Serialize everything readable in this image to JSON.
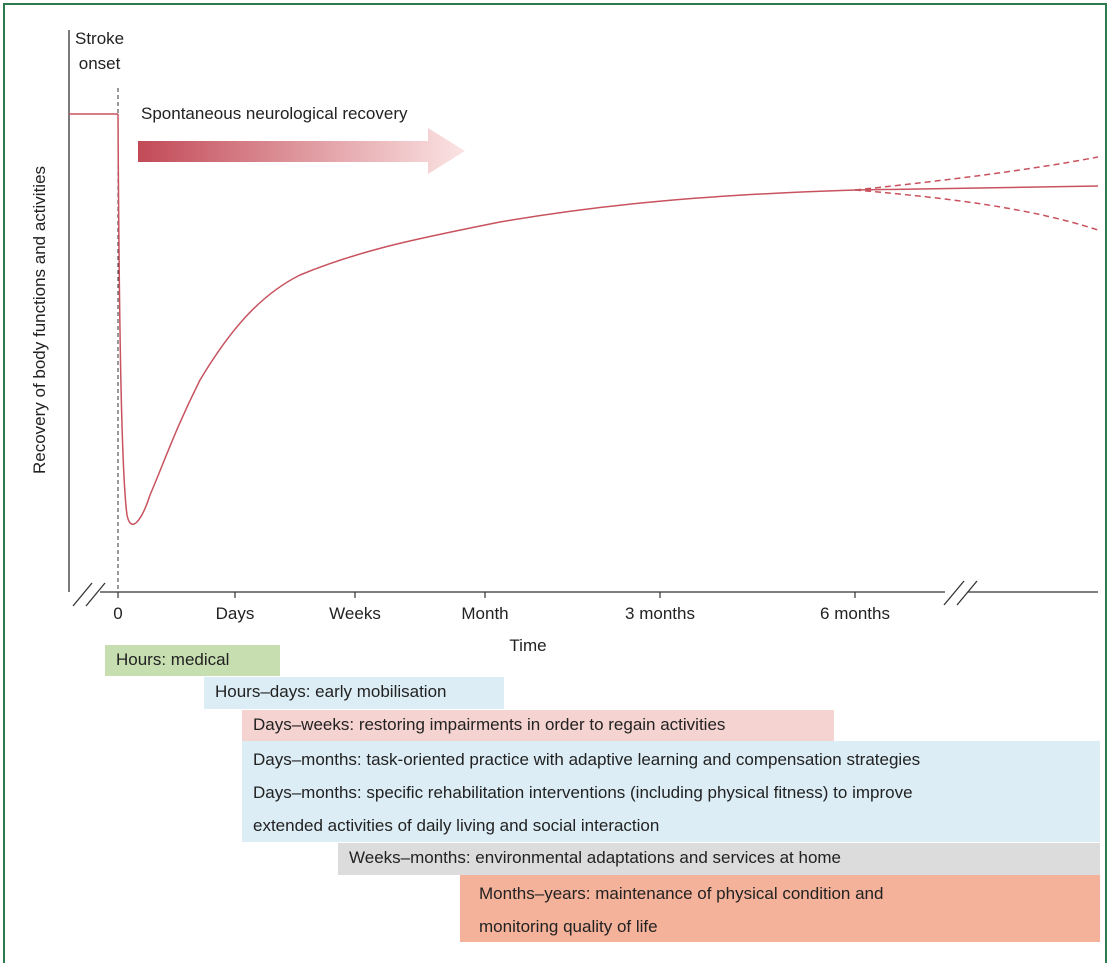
{
  "stroke_onset": [
    "Stroke",
    "onset"
  ],
  "recovery_arrow_label": "Spontaneous neurological recovery",
  "y_axis_label": "Recovery of body functions and activities",
  "x_axis_label": "Time",
  "ticks": [
    "0",
    "Days",
    "Weeks",
    "Month",
    "3 months",
    "6 months"
  ],
  "phases": [
    {
      "label": "Hours: medical",
      "color": "#c6deb0"
    },
    {
      "label": "Hours–days: early mobilisation",
      "color": "#dcedf5"
    },
    {
      "label": "Days–weeks: restoring impairments in order to regain activities",
      "color": "#f5d3d0"
    },
    {
      "lines": [
        "Days–months: task-oriented practice with adaptive learning and compensation strategies",
        "Days–months: specific rehabilitation interventions (including physical fitness) to improve",
        "extended activities of daily living and social interaction"
      ],
      "color": "#dcedf5"
    },
    {
      "label": "Weeks–months: environmental adaptations and services at home",
      "color": "#dcdcdc"
    },
    {
      "lines": [
        "Months–years: maintenance of physical condition and",
        "monitoring quality of life"
      ],
      "color": "#f5b29a"
    }
  ],
  "colors": {
    "curve": "#c8525e",
    "frame": "#2f7a4e",
    "axis": "#333333"
  }
}
